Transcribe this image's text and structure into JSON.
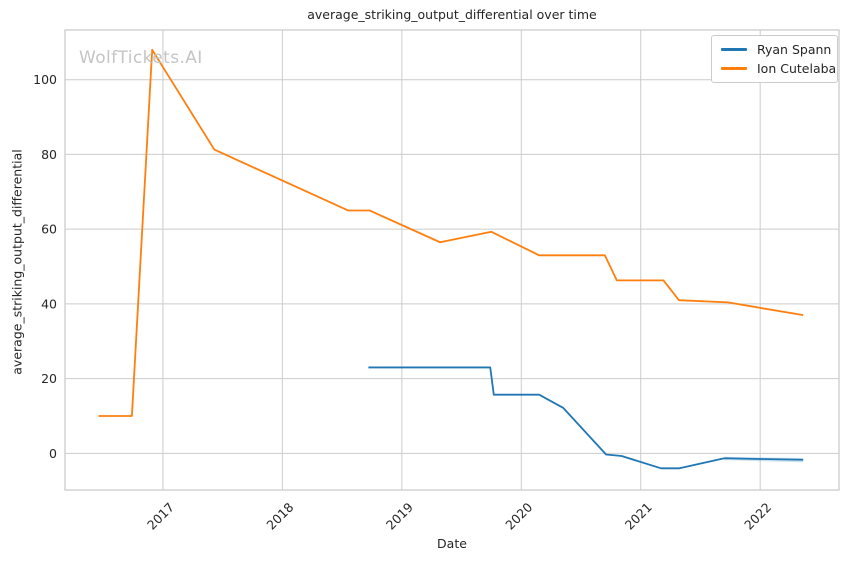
{
  "watermark": {
    "text": "WolfTickets.AI"
  },
  "colors": {
    "grid": "#cccccc",
    "spine": "#c7c7c7",
    "text": "#262626",
    "watermark": "#c5c5c5",
    "background": "#ffffff"
  },
  "chart_data": {
    "type": "line",
    "title": "average_striking_output_differential over time",
    "xlabel": "Date",
    "ylabel": "average_striking_output_differential",
    "grid": true,
    "legend_position": "upper right",
    "xlim": [
      2016.18,
      2022.66
    ],
    "ylim": [
      -9.8,
      113.3
    ],
    "xticks": {
      "values": [
        2017,
        2018,
        2019,
        2020,
        2021,
        2022
      ],
      "labels": [
        "2017",
        "2018",
        "2019",
        "2020",
        "2021",
        "2022"
      ]
    },
    "yticks": {
      "values": [
        0,
        20,
        40,
        60,
        80,
        100
      ],
      "labels": [
        "0",
        "20",
        "40",
        "60",
        "80",
        "100"
      ]
    },
    "series": [
      {
        "name": "Ryan Spann",
        "color": "#1f77b4",
        "x": [
          2018.72,
          2019.74,
          2019.77,
          2020.15,
          2020.35,
          2020.71,
          2020.84,
          2021.17,
          2021.32,
          2021.7,
          2022.0,
          2022.36
        ],
        "y": [
          23,
          23,
          15.7,
          15.7,
          12.2,
          -0.3,
          -0.7,
          -4,
          -4,
          -1.3,
          -1.5,
          -1.7
        ],
        "ci_band": {
          "x": [
            2021.7,
            2022.0,
            2022.36
          ],
          "upper": [
            -0.9,
            -1.1,
            -1.2
          ],
          "lower": [
            -1.8,
            -2.1,
            -2.4
          ]
        }
      },
      {
        "name": "Ion Cutelaba",
        "color": "#ff7f0e",
        "x": [
          2016.46,
          2016.74,
          2016.91,
          2017.43,
          2018.55,
          2018.73,
          2019.32,
          2019.75,
          2020.15,
          2020.7,
          2020.8,
          2021.19,
          2021.32,
          2021.73,
          2022.36
        ],
        "y": [
          10,
          10,
          108,
          81.3,
          65,
          65,
          56.5,
          59.3,
          53,
          53,
          46.3,
          46.3,
          41,
          40.4,
          37
        ]
      }
    ]
  }
}
